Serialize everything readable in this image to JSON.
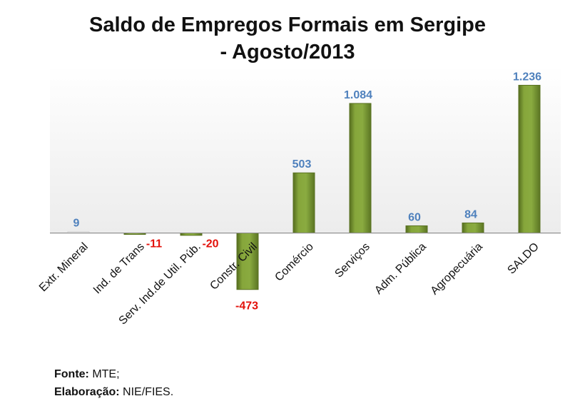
{
  "title_line1": "Saldo de Empregos Formais em Sergipe",
  "title_line2": "- Agosto/2013",
  "footer": {
    "source_label": "Fonte:",
    "source_value": "MTE;",
    "credit_label": "Elaboração:",
    "credit_value": "NIE/FIES."
  },
  "colors": {
    "positive_label": "#4f81bd",
    "negative_label": "#e3120b",
    "bar": "#7f9f35",
    "plot_bg": "#f2f2f2"
  },
  "chart_data": {
    "type": "bar",
    "title": "Saldo de Empregos Formais em Sergipe - Agosto/2013",
    "xlabel": "",
    "ylabel": "",
    "categories": [
      "Extr. Mineral",
      "Ind. de Trans",
      "Serv. Ind.de Util. Púb.",
      "Constr. Civil",
      "Comércio",
      "Serviços",
      "Adm. Pública",
      "Agropecuária",
      "SALDO"
    ],
    "values": [
      9,
      -11,
      -20,
      -473,
      503,
      1084,
      60,
      84,
      1236
    ],
    "value_labels": [
      "9",
      "-11",
      "-20",
      "-473",
      "503",
      "1.084",
      "60",
      "84",
      "1.236"
    ],
    "ylim": [
      -500,
      1350
    ],
    "grid": false,
    "legend": "none"
  }
}
